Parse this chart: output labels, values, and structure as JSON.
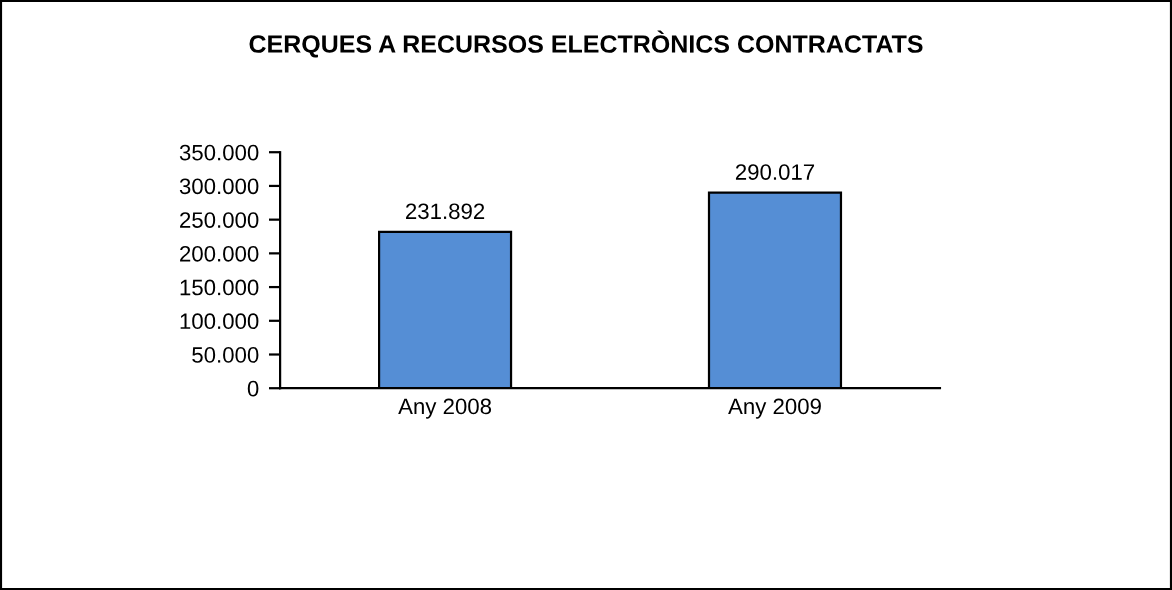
{
  "chart_data": {
    "type": "bar",
    "title": "CERQUES A RECURSOS ELECTRÒNICS CONTRACTATS",
    "categories": [
      "Any 2008",
      "Any 2009"
    ],
    "values": [
      231892,
      290017
    ],
    "value_labels": [
      "231.892",
      "290.017"
    ],
    "color": "#558ed5",
    "ylim": [
      0,
      350000
    ],
    "yticks": [
      0,
      {
        "value": 50000,
        "label": "50.000"
      },
      {
        "value": 100000,
        "label": "100.000"
      },
      {
        "value": 150000,
        "label": "150.000"
      },
      {
        "value": 200000,
        "label": "200.000"
      },
      {
        "value": 250000,
        "label": "250.000"
      },
      {
        "value": 300000,
        "label": "300.000"
      },
      {
        "value": 350000,
        "label": "350.000"
      }
    ],
    "grid": false,
    "legend": false
  }
}
